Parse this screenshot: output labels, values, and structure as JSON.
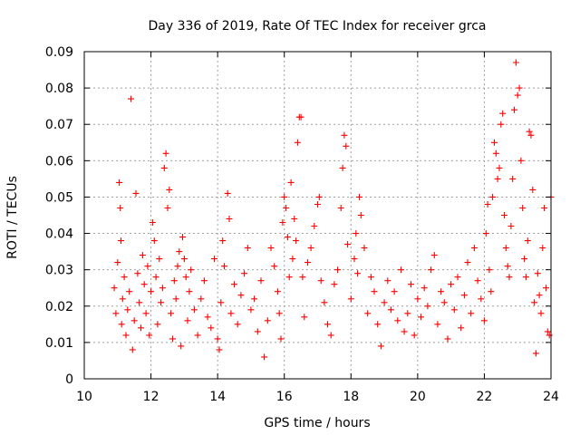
{
  "chart_data": {
    "type": "scatter",
    "title": "Day 336 of 2019, Rate Of TEC Index for receiver grca",
    "xlabel": "GPS time / hours",
    "ylabel": "ROTI / TECUs",
    "xlim": [
      10,
      24
    ],
    "ylim": [
      0,
      0.09
    ],
    "xticks": [
      10,
      12,
      14,
      16,
      18,
      20,
      22,
      24
    ],
    "yticks": [
      0,
      0.01,
      0.02,
      0.03,
      0.04,
      0.05,
      0.06,
      0.07,
      0.08,
      0.09
    ],
    "xtick_labels": [
      "10",
      "12",
      "14",
      "16",
      "18",
      "20",
      "22",
      "24"
    ],
    "ytick_labels": [
      "0",
      "0.01",
      "0.02",
      "0.03",
      "0.04",
      "0.05",
      "0.06",
      "0.07",
      "0.08",
      "0.09"
    ],
    "grid": true,
    "marker": "+",
    "marker_color": "#ff0000",
    "series": [
      {
        "points": [
          [
            10.9,
            0.025
          ],
          [
            10.95,
            0.018
          ],
          [
            11.0,
            0.032
          ],
          [
            11.05,
            0.054
          ],
          [
            11.08,
            0.047
          ],
          [
            11.1,
            0.038
          ],
          [
            11.12,
            0.015
          ],
          [
            11.15,
            0.022
          ],
          [
            11.2,
            0.028
          ],
          [
            11.25,
            0.012
          ],
          [
            11.3,
            0.019
          ],
          [
            11.35,
            0.024
          ],
          [
            11.4,
            0.077
          ],
          [
            11.45,
            0.008
          ],
          [
            11.5,
            0.016
          ],
          [
            11.55,
            0.051
          ],
          [
            11.6,
            0.029
          ],
          [
            11.65,
            0.021
          ],
          [
            11.7,
            0.014
          ],
          [
            11.75,
            0.034
          ],
          [
            11.8,
            0.026
          ],
          [
            11.85,
            0.018
          ],
          [
            11.9,
            0.031
          ],
          [
            11.95,
            0.012
          ],
          [
            12.0,
            0.024
          ],
          [
            12.05,
            0.043
          ],
          [
            12.1,
            0.038
          ],
          [
            12.15,
            0.028
          ],
          [
            12.2,
            0.015
          ],
          [
            12.25,
            0.033
          ],
          [
            12.3,
            0.021
          ],
          [
            12.35,
            0.025
          ],
          [
            12.4,
            0.058
          ],
          [
            12.45,
            0.062
          ],
          [
            12.5,
            0.047
          ],
          [
            12.55,
            0.052
          ],
          [
            12.6,
            0.018
          ],
          [
            12.65,
            0.011
          ],
          [
            12.7,
            0.027
          ],
          [
            12.75,
            0.022
          ],
          [
            12.8,
            0.031
          ],
          [
            12.85,
            0.035
          ],
          [
            12.9,
            0.009
          ],
          [
            12.95,
            0.039
          ],
          [
            13.0,
            0.033
          ],
          [
            13.05,
            0.028
          ],
          [
            13.1,
            0.016
          ],
          [
            13.15,
            0.024
          ],
          [
            13.2,
            0.03
          ],
          [
            13.3,
            0.019
          ],
          [
            13.4,
            0.012
          ],
          [
            13.5,
            0.022
          ],
          [
            13.6,
            0.027
          ],
          [
            13.7,
            0.017
          ],
          [
            13.8,
            0.014
          ],
          [
            13.9,
            0.033
          ],
          [
            14.0,
            0.011
          ],
          [
            14.05,
            0.008
          ],
          [
            14.1,
            0.021
          ],
          [
            14.15,
            0.038
          ],
          [
            14.2,
            0.031
          ],
          [
            14.3,
            0.051
          ],
          [
            14.35,
            0.044
          ],
          [
            14.4,
            0.018
          ],
          [
            14.5,
            0.026
          ],
          [
            14.6,
            0.015
          ],
          [
            14.7,
            0.023
          ],
          [
            14.8,
            0.029
          ],
          [
            14.9,
            0.036
          ],
          [
            15.0,
            0.019
          ],
          [
            15.1,
            0.022
          ],
          [
            15.2,
            0.013
          ],
          [
            15.3,
            0.027
          ],
          [
            15.4,
            0.006
          ],
          [
            15.5,
            0.016
          ],
          [
            15.6,
            0.036
          ],
          [
            15.7,
            0.031
          ],
          [
            15.8,
            0.024
          ],
          [
            15.85,
            0.018
          ],
          [
            15.9,
            0.011
          ],
          [
            15.95,
            0.043
          ],
          [
            16.0,
            0.05
          ],
          [
            16.05,
            0.047
          ],
          [
            16.1,
            0.039
          ],
          [
            16.15,
            0.028
          ],
          [
            16.2,
            0.054
          ],
          [
            16.25,
            0.033
          ],
          [
            16.3,
            0.044
          ],
          [
            16.35,
            0.038
          ],
          [
            16.4,
            0.065
          ],
          [
            16.45,
            0.072
          ],
          [
            16.5,
            0.072
          ],
          [
            16.55,
            0.028
          ],
          [
            16.6,
            0.017
          ],
          [
            16.7,
            0.032
          ],
          [
            16.8,
            0.036
          ],
          [
            16.9,
            0.042
          ],
          [
            17.0,
            0.048
          ],
          [
            17.05,
            0.05
          ],
          [
            17.1,
            0.027
          ],
          [
            17.2,
            0.021
          ],
          [
            17.3,
            0.015
          ],
          [
            17.4,
            0.012
          ],
          [
            17.5,
            0.026
          ],
          [
            17.6,
            0.03
          ],
          [
            17.7,
            0.047
          ],
          [
            17.75,
            0.058
          ],
          [
            17.8,
            0.067
          ],
          [
            17.85,
            0.064
          ],
          [
            17.9,
            0.037
          ],
          [
            18.0,
            0.022
          ],
          [
            18.1,
            0.033
          ],
          [
            18.15,
            0.04
          ],
          [
            18.2,
            0.029
          ],
          [
            18.25,
            0.05
          ],
          [
            18.3,
            0.045
          ],
          [
            18.4,
            0.036
          ],
          [
            18.5,
            0.018
          ],
          [
            18.6,
            0.028
          ],
          [
            18.7,
            0.024
          ],
          [
            18.8,
            0.015
          ],
          [
            18.9,
            0.009
          ],
          [
            19.0,
            0.021
          ],
          [
            19.1,
            0.027
          ],
          [
            19.2,
            0.019
          ],
          [
            19.3,
            0.024
          ],
          [
            19.4,
            0.016
          ],
          [
            19.5,
            0.03
          ],
          [
            19.6,
            0.013
          ],
          [
            19.7,
            0.018
          ],
          [
            19.8,
            0.026
          ],
          [
            19.9,
            0.012
          ],
          [
            20.0,
            0.022
          ],
          [
            20.1,
            0.017
          ],
          [
            20.2,
            0.025
          ],
          [
            20.3,
            0.02
          ],
          [
            20.4,
            0.03
          ],
          [
            20.5,
            0.034
          ],
          [
            20.6,
            0.015
          ],
          [
            20.7,
            0.024
          ],
          [
            20.8,
            0.021
          ],
          [
            20.9,
            0.011
          ],
          [
            21.0,
            0.026
          ],
          [
            21.1,
            0.019
          ],
          [
            21.2,
            0.028
          ],
          [
            21.3,
            0.014
          ],
          [
            21.4,
            0.023
          ],
          [
            21.5,
            0.032
          ],
          [
            21.6,
            0.018
          ],
          [
            21.7,
            0.036
          ],
          [
            21.8,
            0.027
          ],
          [
            21.9,
            0.022
          ],
          [
            22.0,
            0.016
          ],
          [
            22.05,
            0.04
          ],
          [
            22.1,
            0.048
          ],
          [
            22.15,
            0.03
          ],
          [
            22.2,
            0.024
          ],
          [
            22.25,
            0.05
          ],
          [
            22.3,
            0.065
          ],
          [
            22.35,
            0.062
          ],
          [
            22.4,
            0.055
          ],
          [
            22.45,
            0.058
          ],
          [
            22.5,
            0.07
          ],
          [
            22.55,
            0.073
          ],
          [
            22.6,
            0.045
          ],
          [
            22.65,
            0.036
          ],
          [
            22.7,
            0.031
          ],
          [
            22.75,
            0.028
          ],
          [
            22.8,
            0.042
          ],
          [
            22.85,
            0.055
          ],
          [
            22.9,
            0.074
          ],
          [
            22.95,
            0.087
          ],
          [
            23.0,
            0.078
          ],
          [
            23.05,
            0.08
          ],
          [
            23.1,
            0.06
          ],
          [
            23.15,
            0.047
          ],
          [
            23.2,
            0.033
          ],
          [
            23.25,
            0.028
          ],
          [
            23.3,
            0.038
          ],
          [
            23.35,
            0.068
          ],
          [
            23.4,
            0.067
          ],
          [
            23.45,
            0.052
          ],
          [
            23.5,
            0.021
          ],
          [
            23.55,
            0.007
          ],
          [
            23.6,
            0.029
          ],
          [
            23.65,
            0.023
          ],
          [
            23.7,
            0.018
          ],
          [
            23.75,
            0.036
          ],
          [
            23.8,
            0.047
          ],
          [
            23.85,
            0.025
          ],
          [
            23.9,
            0.013
          ],
          [
            23.95,
            0.012
          ],
          [
            24.0,
            0.05
          ]
        ]
      }
    ]
  }
}
